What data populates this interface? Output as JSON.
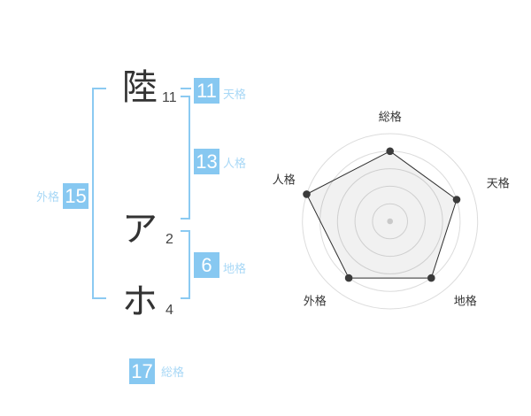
{
  "colors": {
    "accent_blue": "#87C8F1",
    "label_blue": "#A9D8F6",
    "ink": "#333333"
  },
  "name_display": {
    "characters": [
      {
        "glyph": "陸",
        "strokes": "11"
      },
      {
        "glyph": "ア",
        "strokes": "2"
      },
      {
        "glyph": "ホ",
        "strokes": "4"
      }
    ],
    "scores": [
      {
        "id": "tenkaku",
        "value": "11",
        "label": "天格"
      },
      {
        "id": "jinkaku",
        "value": "13",
        "label": "人格"
      },
      {
        "id": "gaikaku",
        "value": "15",
        "label": "外格"
      },
      {
        "id": "chikaku",
        "value": "6",
        "label": "地格"
      },
      {
        "id": "soukaku",
        "value": "17",
        "label": "総格"
      }
    ]
  },
  "chart_data": {
    "type": "radar",
    "categories": [
      "総格",
      "天格",
      "地格",
      "外格",
      "人格"
    ],
    "values": [
      4,
      4,
      4,
      4,
      5
    ],
    "max": 5,
    "rings": 5,
    "grid": true,
    "legend": false,
    "title": "",
    "ring_color": "#dcdcdc",
    "fill_color": "rgba(0,0,0,0.055)",
    "stroke_color": "#2f2f2f",
    "point_color": "#3b3b3b",
    "center_dot_color": "#c9c9c9",
    "label_color": "#333333"
  }
}
